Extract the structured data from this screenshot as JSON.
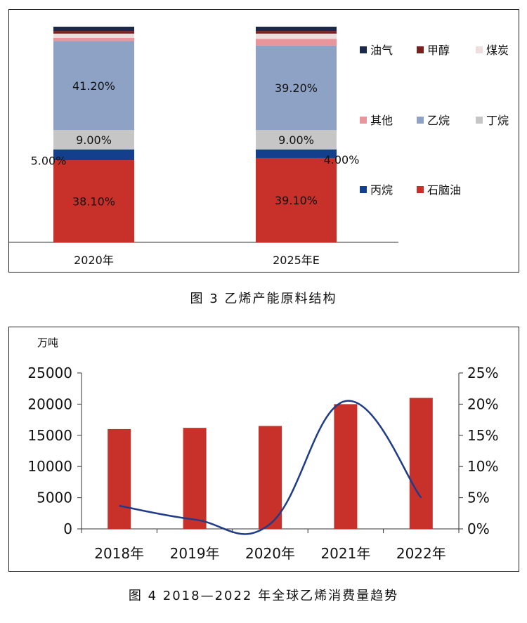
{
  "chart_data": [
    {
      "type": "bar",
      "stacked": true,
      "caption": "图 3  乙烯产能原料结构",
      "categories": [
        "2020年",
        "2025年E"
      ],
      "series": [
        {
          "name": "石脑油",
          "values": [
            38.1,
            39.1
          ],
          "labels": [
            "38.10%",
            "39.10%"
          ],
          "color": "#c8302a"
        },
        {
          "name": "丙烷",
          "values": [
            5.0,
            4.0
          ],
          "labels": [
            "5.00%",
            "4.00%"
          ],
          "color": "#143f8c"
        },
        {
          "name": "丁烷",
          "values": [
            9.0,
            9.0
          ],
          "labels": [
            "9.00%",
            "9.00%"
          ],
          "color": "#c6c6c6"
        },
        {
          "name": "乙烷",
          "values": [
            41.2,
            39.2
          ],
          "labels": [
            "41.20%",
            "39.20%"
          ],
          "color": "#8ea2c6"
        },
        {
          "name": "其他",
          "values": [
            1.5,
            3.0
          ],
          "color": "#e8959b"
        },
        {
          "name": "煤炭",
          "values": [
            2.0,
            2.5
          ],
          "color": "#efdede"
        },
        {
          "name": "甲醇",
          "values": [
            1.2,
            1.2
          ],
          "color": "#7a1f1c"
        },
        {
          "name": "油气",
          "values": [
            2.0,
            2.0
          ],
          "color": "#1b2a4a"
        }
      ],
      "legend": {
        "position": "right",
        "order": [
          "油气",
          "甲醇",
          "煤炭",
          "其他",
          "乙烷",
          "丁烷",
          "丙烷",
          "石脑油"
        ]
      }
    },
    {
      "type": "bar+line",
      "caption": "图 4  2018—2022 年全球乙烯消费量趋势",
      "unit_label": "万吨",
      "categories": [
        "2018年",
        "2019年",
        "2020年",
        "2021年",
        "2022年"
      ],
      "bar_series": {
        "values": [
          16000,
          16200,
          16500,
          20000,
          21000
        ],
        "color": "#c8302a"
      },
      "line_series": {
        "values": [
          3.7,
          1.5,
          0.8,
          20.5,
          5.0
        ],
        "unit": "%",
        "color": "#1f3c88"
      },
      "y_left": {
        "min": 0,
        "max": 25000,
        "ticks": [
          "0",
          "5000",
          "10000",
          "15000",
          "20000",
          "25000"
        ]
      },
      "y_right": {
        "min": 0,
        "max": 25,
        "ticks": [
          "0%",
          "5%",
          "10%",
          "15%",
          "20%",
          "25%"
        ]
      }
    }
  ]
}
